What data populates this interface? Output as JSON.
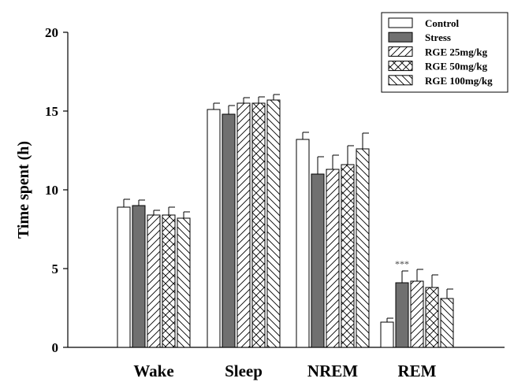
{
  "chart_data": {
    "type": "bar",
    "ylabel": "Time spent (h)",
    "xlabel": "",
    "ylim": [
      0,
      20
    ],
    "yticks": [
      0,
      5,
      10,
      15,
      20
    ],
    "categories": [
      "Wake",
      "Sleep",
      "NREM",
      "REM"
    ],
    "legend_position": "top-right",
    "series": [
      {
        "name": "Control",
        "values": [
          8.9,
          15.1,
          13.2,
          1.6
        ],
        "errors": [
          0.5,
          0.4,
          0.45,
          0.25
        ],
        "pattern": "none",
        "fill": "#ffffff"
      },
      {
        "name": "Stress",
        "values": [
          9.0,
          14.8,
          11.0,
          4.1
        ],
        "errors": [
          0.35,
          0.55,
          1.1,
          0.75
        ],
        "pattern": "solid",
        "fill": "#707070"
      },
      {
        "name": "RGE 25mg/kg",
        "values": [
          8.4,
          15.5,
          11.3,
          4.2
        ],
        "errors": [
          0.3,
          0.35,
          0.9,
          0.75
        ],
        "pattern": "diagonal",
        "fill": "#ffffff"
      },
      {
        "name": "RGE 50mg/kg",
        "values": [
          8.4,
          15.5,
          11.6,
          3.8
        ],
        "errors": [
          0.5,
          0.4,
          1.2,
          0.8
        ],
        "pattern": "crosshatch",
        "fill": "#ffffff"
      },
      {
        "name": "RGE 100mg/kg",
        "values": [
          8.2,
          15.7,
          12.6,
          3.1
        ],
        "errors": [
          0.4,
          0.35,
          1.0,
          0.6
        ],
        "pattern": "backdiagonal",
        "fill": "#ffffff"
      }
    ],
    "annotations": [
      {
        "text": "***",
        "category": "REM",
        "series": "Stress"
      }
    ]
  }
}
